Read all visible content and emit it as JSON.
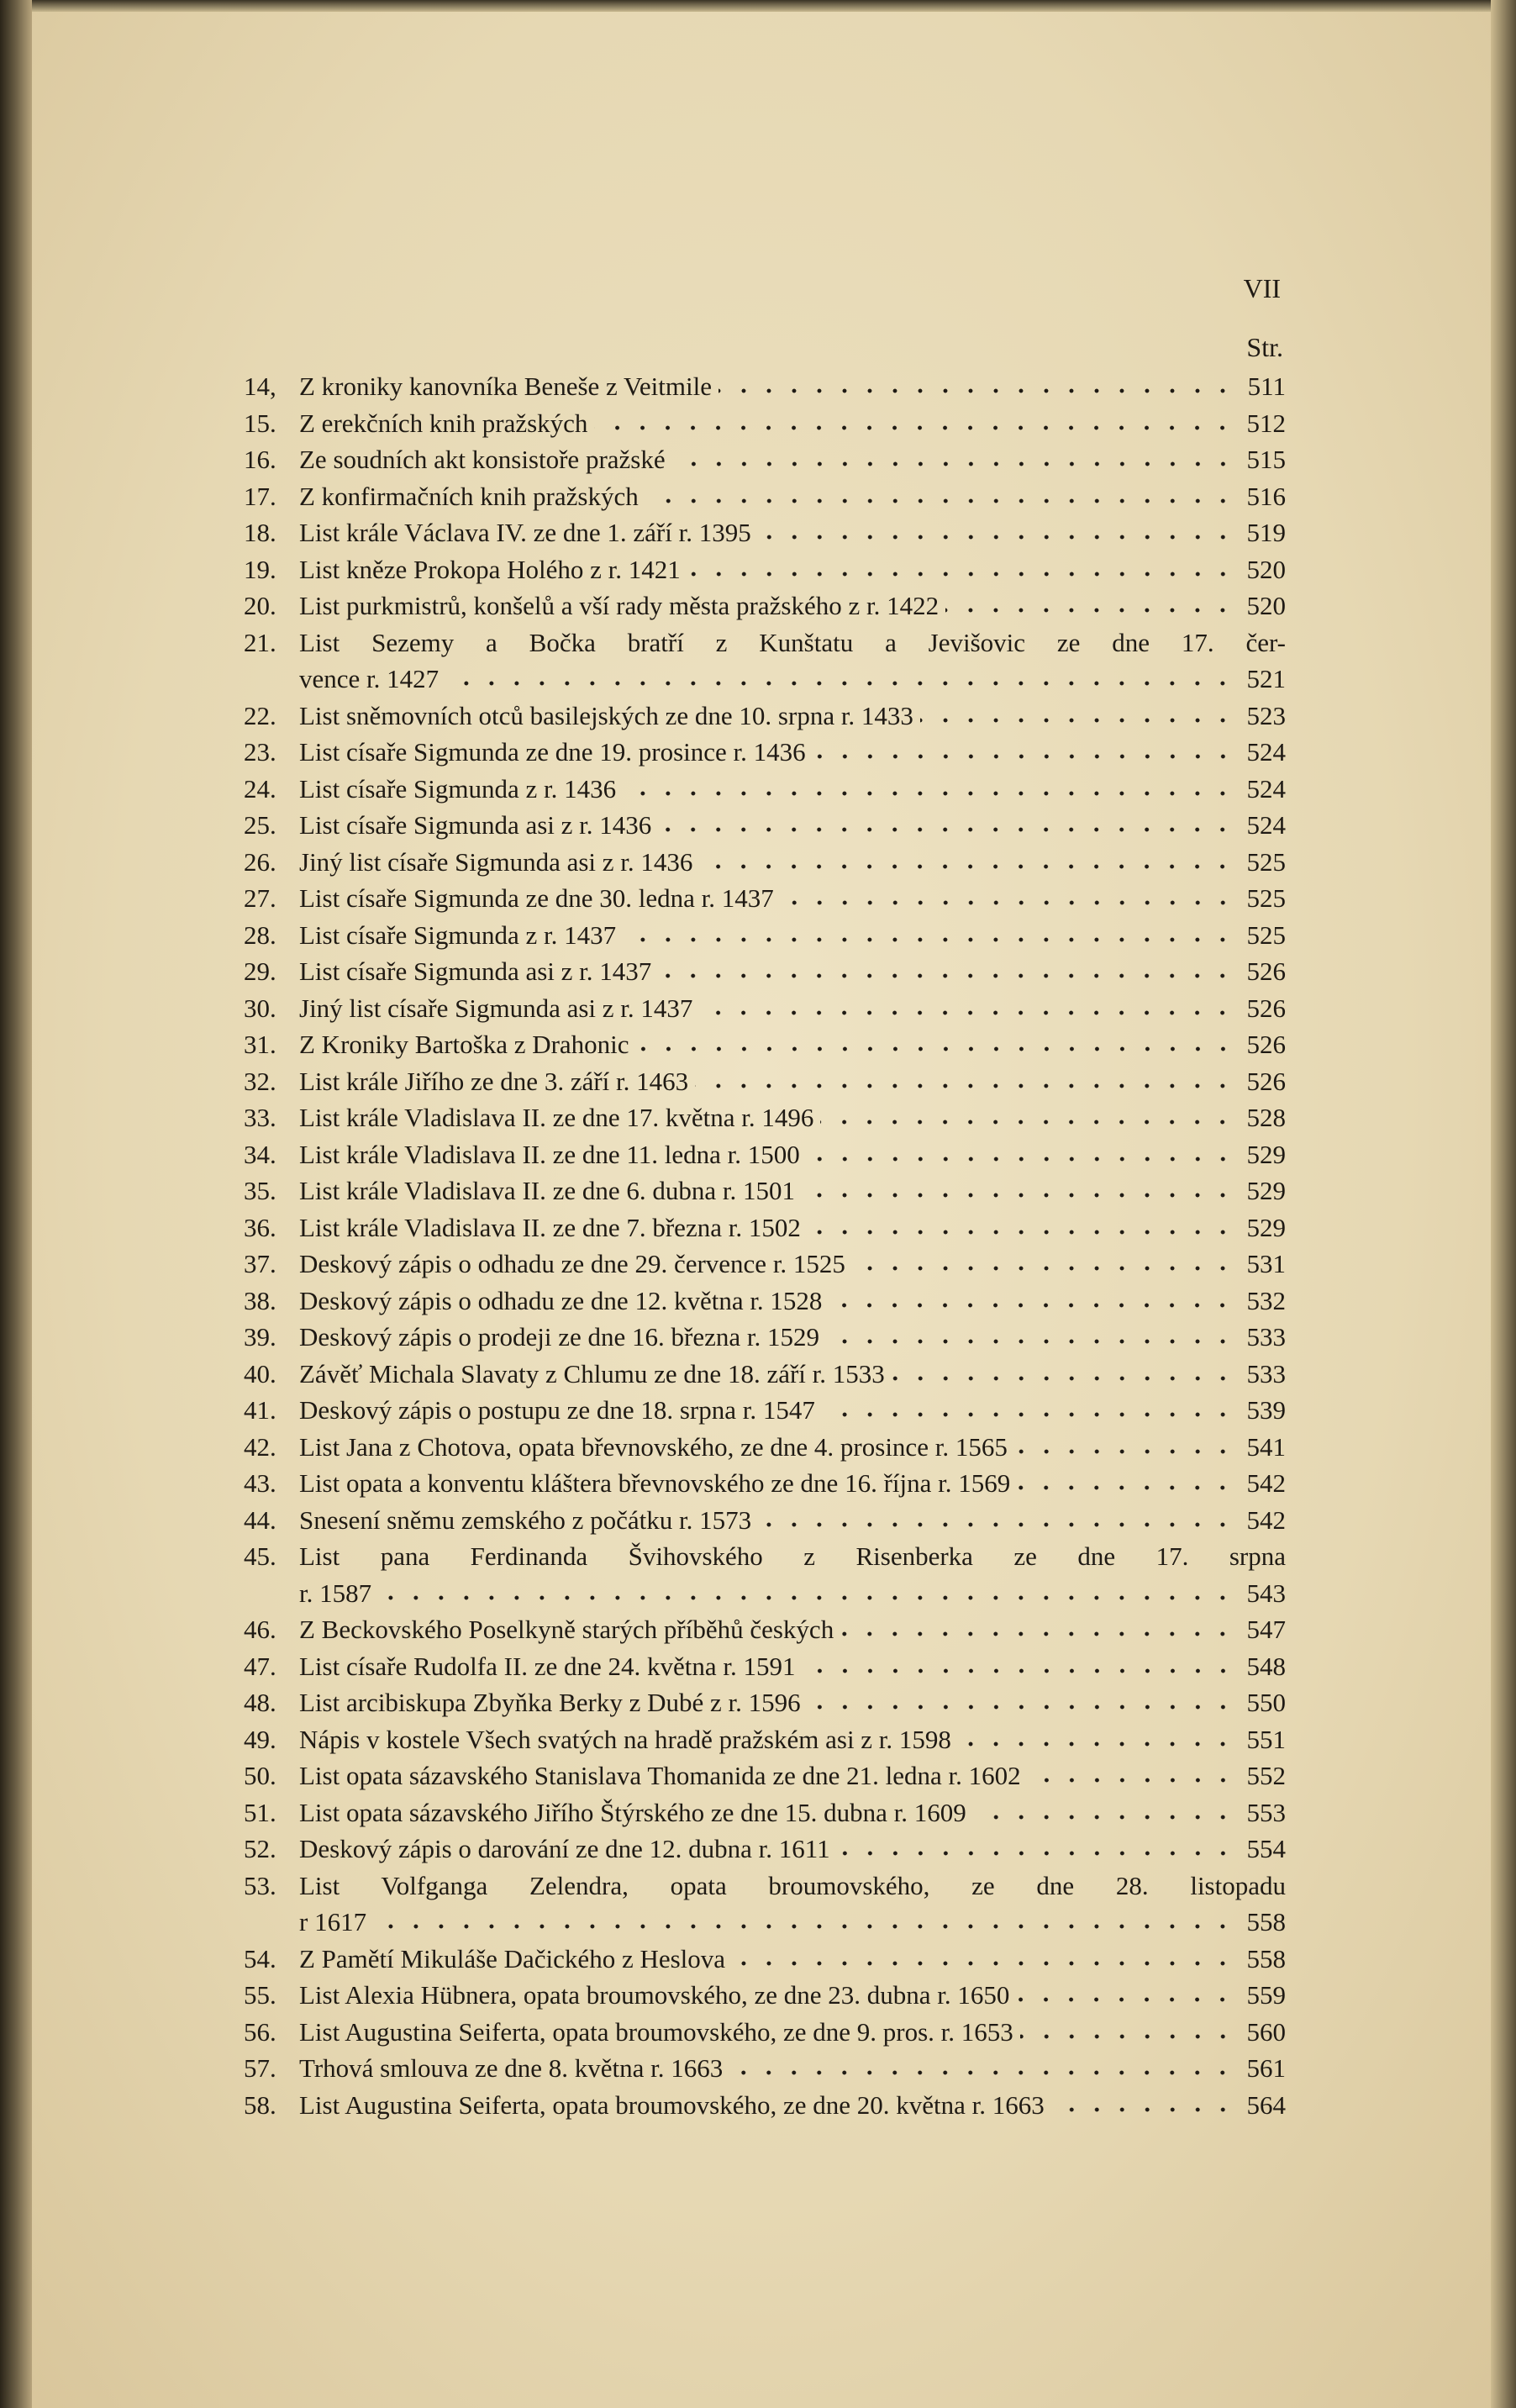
{
  "header": {
    "page_number": "VII",
    "column_label": "Str."
  },
  "entries": [
    {
      "number": "14,",
      "lines": [
        "Z kroniky kanovníka Beneše z Veitmile"
      ],
      "page": 511
    },
    {
      "number": "15.",
      "lines": [
        "Z erekčních knih pražských"
      ],
      "page": 512
    },
    {
      "number": "16.",
      "lines": [
        "Ze soudních akt konsistoře pražské"
      ],
      "page": 515
    },
    {
      "number": "17.",
      "lines": [
        "Z konfirmačních knih pražských"
      ],
      "page": 516
    },
    {
      "number": "18.",
      "lines": [
        "List krále Václava IV. ze dne 1. září r. 1395"
      ],
      "page": 519
    },
    {
      "number": "19.",
      "lines": [
        "List kněze Prokopa Holého z r. 1421"
      ],
      "page": 520
    },
    {
      "number": "20.",
      "lines": [
        "List purkmistrů, konšelů a vší rady města pražského z r. 1422"
      ],
      "page": 520
    },
    {
      "number": "21.",
      "lines": [
        "List Sezemy a Bočka bratří z Kunštatu a Jevišovic ze dne 17. čer-",
        "vence r. 1427"
      ],
      "page": 521
    },
    {
      "number": "22.",
      "lines": [
        "List sněmovních otců basilejských ze dne 10. srpna r. 1433"
      ],
      "page": 523
    },
    {
      "number": "23.",
      "lines": [
        "List císaře Sigmunda ze dne 19. prosince r. 1436"
      ],
      "page": 524
    },
    {
      "number": "24.",
      "lines": [
        "List císaře Sigmunda z r. 1436"
      ],
      "page": 524
    },
    {
      "number": "25.",
      "lines": [
        "List císaře Sigmunda asi z r. 1436"
      ],
      "page": 524
    },
    {
      "number": "26.",
      "lines": [
        "Jiný list císaře Sigmunda asi z r. 1436"
      ],
      "page": 525
    },
    {
      "number": "27.",
      "lines": [
        "List císaře Sigmunda ze dne 30. ledna r. 1437"
      ],
      "page": 525
    },
    {
      "number": "28.",
      "lines": [
        "List císaře Sigmunda z r. 1437"
      ],
      "page": 525
    },
    {
      "number": "29.",
      "lines": [
        "List císaře Sigmunda asi z r. 1437"
      ],
      "page": 526
    },
    {
      "number": "30.",
      "lines": [
        "Jiný list císaře Sigmunda asi z r. 1437"
      ],
      "page": 526
    },
    {
      "number": "31.",
      "lines": [
        "Z Kroniky Bartoška z Drahonic"
      ],
      "page": 526
    },
    {
      "number": "32.",
      "lines": [
        "List krále Jiřího ze dne 3. září r. 1463"
      ],
      "page": 526
    },
    {
      "number": "33.",
      "lines": [
        "List krále Vladislava II. ze dne 17. května r. 1496"
      ],
      "page": 528
    },
    {
      "number": "34.",
      "lines": [
        "List krále Vladislava II. ze dne 11. ledna r. 1500"
      ],
      "page": 529
    },
    {
      "number": "35.",
      "lines": [
        "List krále Vladislava II. ze dne 6. dubna r. 1501"
      ],
      "page": 529
    },
    {
      "number": "36.",
      "lines": [
        "List krále Vladislava II. ze dne 7. března r. 1502"
      ],
      "page": 529
    },
    {
      "number": "37.",
      "lines": [
        "Deskový zápis o odhadu ze dne 29. července r. 1525"
      ],
      "page": 531
    },
    {
      "number": "38.",
      "lines": [
        "Deskový zápis o odhadu ze dne 12. května r. 1528"
      ],
      "page": 532
    },
    {
      "number": "39.",
      "lines": [
        "Deskový zápis o prodeji ze dne 16. března r. 1529"
      ],
      "page": 533
    },
    {
      "number": "40.",
      "lines": [
        "Závěť Michala Slavaty z Chlumu ze dne 18. září r. 1533"
      ],
      "page": 533
    },
    {
      "number": "41.",
      "lines": [
        "Deskový zápis o postupu ze dne 18. srpna r. 1547"
      ],
      "page": 539
    },
    {
      "number": "42.",
      "lines": [
        "List Jana z Chotova, opata břevnovského, ze dne 4. prosince r. 1565"
      ],
      "page": 541
    },
    {
      "number": "43.",
      "lines": [
        "List opata a konventu kláštera břevnovského ze dne 16. října r. 1569"
      ],
      "page": 542
    },
    {
      "number": "44.",
      "lines": [
        "Snesení sněmu zemského z počátku r. 1573"
      ],
      "page": 542
    },
    {
      "number": "45.",
      "lines": [
        "List pana Ferdinanda Švihovského z Risenberka ze dne 17. srpna",
        "r. 1587"
      ],
      "page": 543
    },
    {
      "number": "46.",
      "lines": [
        "Z Beckovského Poselkyně starých příběhů českých"
      ],
      "page": 547
    },
    {
      "number": "47.",
      "lines": [
        "List císaře Rudolfa II. ze dne 24. května r. 1591"
      ],
      "page": 548
    },
    {
      "number": "48.",
      "lines": [
        "List arcibiskupa Zbyňka Berky z Dubé z r. 1596"
      ],
      "page": 550
    },
    {
      "number": "49.",
      "lines": [
        "Nápis v kostele Všech svatých na hradě pražském asi z r. 1598"
      ],
      "page": 551
    },
    {
      "number": "50.",
      "lines": [
        "List opata sázavského Stanislava Thomanida ze dne 21. ledna r. 1602"
      ],
      "page": 552
    },
    {
      "number": "51.",
      "lines": [
        "List opata sázavského Jiřího Štýrského ze dne 15. dubna r. 1609"
      ],
      "page": 553
    },
    {
      "number": "52.",
      "lines": [
        "Deskový zápis o darování ze dne 12. dubna r. 1611"
      ],
      "page": 554
    },
    {
      "number": "53.",
      "lines": [
        "List Volfganga Zelendra, opata broumovského, ze dne 28. listopadu",
        "r 1617"
      ],
      "page": 558
    },
    {
      "number": "54.",
      "lines": [
        "Z Pamětí Mikuláše Dačického z Heslova"
      ],
      "page": 558
    },
    {
      "number": "55.",
      "lines": [
        "List Alexia Hübnera, opata broumovského, ze dne 23. dubna r. 1650"
      ],
      "page": 559
    },
    {
      "number": "56.",
      "lines": [
        "List Augustina Seiferta, opata broumovského, ze dne 9. pros. r. 1653"
      ],
      "page": 560
    },
    {
      "number": "57.",
      "lines": [
        "Trhová smlouva ze dne 8. května r. 1663"
      ],
      "page": 561
    },
    {
      "number": "58.",
      "lines": [
        "List Augustina Seiferta, opata broumovského, ze dne 20. května r. 1663"
      ],
      "page": 564
    }
  ]
}
